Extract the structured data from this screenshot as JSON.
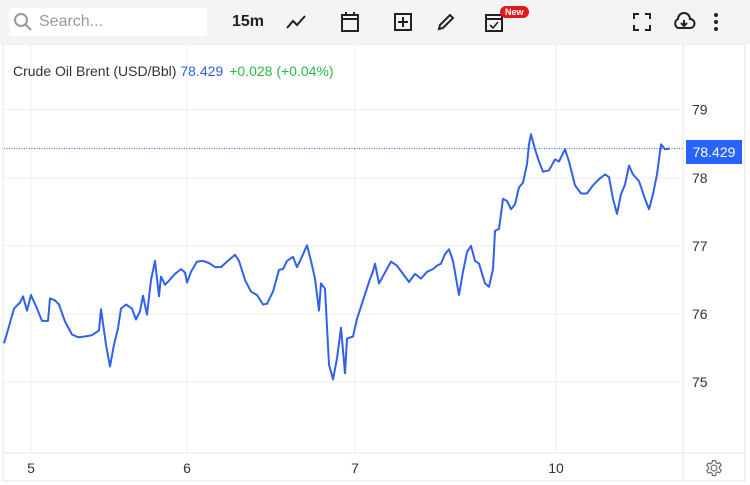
{
  "toolbar": {
    "search_placeholder": "Search...",
    "interval": "15m",
    "icons": [
      "search-icon",
      "line-chart-icon",
      "calendar-icon",
      "add-indicator-icon",
      "pencil-icon",
      "calendar-check-icon",
      "fullscreen-icon",
      "cloud-download-icon",
      "more-vertical-icon"
    ],
    "new_badge": "New"
  },
  "legend": {
    "name": "Crude Oil Brent (USD/Bbl)",
    "price": "78.429",
    "change": "+0.028 (+0.04%)"
  },
  "price_label": "78.429",
  "colors": {
    "line": "#2f62e8",
    "accent": "#2962ff",
    "positive": "#2bb94a"
  },
  "chart_data": {
    "type": "line",
    "title": "",
    "xlabel": "",
    "ylabel": "",
    "x_unit": "bar",
    "x_ticks": [
      {
        "label": "5",
        "x": 27
      },
      {
        "label": "6",
        "x": 183
      },
      {
        "label": "7",
        "x": 351
      },
      {
        "label": "10",
        "x": 552
      }
    ],
    "y_ticks": [
      75,
      76,
      77,
      78,
      79
    ],
    "ylim": [
      73.96,
      79.95
    ],
    "xlim": [
      0,
      666
    ],
    "grid": true,
    "last_value": 78.429,
    "x": [
      0,
      5,
      10,
      16,
      19,
      23,
      27,
      33,
      38,
      44,
      46,
      51,
      55,
      61,
      68,
      74,
      81,
      88,
      95,
      97,
      102,
      106,
      110,
      114,
      117,
      122,
      128,
      132,
      136,
      139,
      143,
      147,
      151,
      155,
      157,
      161,
      165,
      171,
      177,
      181,
      183,
      187,
      193,
      199,
      205,
      211,
      217,
      223,
      231,
      235,
      241,
      247,
      253,
      259,
      263,
      269,
      275,
      279,
      283,
      289,
      293,
      297,
      303,
      307,
      311,
      315,
      317,
      321,
      325,
      329,
      333,
      337,
      341,
      343,
      349,
      353,
      359,
      365,
      369,
      371,
      375,
      381,
      387,
      393,
      399,
      405,
      411,
      417,
      423,
      429,
      433,
      437,
      441,
      445,
      449,
      455,
      459,
      463,
      467,
      471,
      475,
      481,
      485,
      489,
      491,
      495,
      499,
      503,
      507,
      511,
      515,
      519,
      523,
      525,
      527,
      531,
      535,
      539,
      545,
      551,
      555,
      561,
      565,
      571,
      577,
      583,
      589,
      595,
      601,
      605,
      609,
      613,
      617,
      621,
      625,
      629,
      635,
      641,
      645,
      649,
      653,
      657,
      661,
      666
    ],
    "values": [
      75.57,
      75.82,
      76.08,
      76.17,
      76.26,
      76.05,
      76.28,
      76.08,
      75.9,
      75.9,
      76.23,
      76.2,
      76.14,
      75.89,
      75.7,
      75.66,
      75.67,
      75.69,
      75.76,
      76.07,
      75.55,
      75.23,
      75.55,
      75.79,
      76.08,
      76.14,
      76.08,
      75.92,
      76.04,
      76.27,
      75.99,
      76.5,
      76.78,
      76.26,
      76.55,
      76.43,
      76.49,
      76.59,
      76.66,
      76.61,
      76.46,
      76.62,
      76.77,
      76.78,
      76.75,
      76.69,
      76.69,
      76.77,
      76.87,
      76.78,
      76.5,
      76.33,
      76.28,
      76.14,
      76.15,
      76.33,
      76.65,
      76.66,
      76.78,
      76.84,
      76.69,
      76.81,
      77.01,
      76.78,
      76.52,
      76.05,
      76.45,
      76.37,
      75.26,
      75.04,
      75.35,
      75.8,
      75.13,
      75.64,
      75.67,
      75.93,
      76.2,
      76.47,
      76.63,
      76.74,
      76.45,
      76.61,
      76.77,
      76.71,
      76.59,
      76.47,
      76.59,
      76.52,
      76.62,
      76.66,
      76.71,
      76.74,
      76.88,
      76.95,
      76.78,
      76.28,
      76.62,
      76.91,
      77.0,
      76.78,
      76.74,
      76.45,
      76.4,
      76.66,
      77.22,
      77.25,
      77.69,
      77.66,
      77.54,
      77.61,
      77.86,
      77.93,
      78.2,
      78.49,
      78.64,
      78.42,
      78.24,
      78.09,
      78.11,
      78.27,
      78.24,
      78.42,
      78.24,
      77.89,
      77.77,
      77.77,
      77.89,
      77.98,
      78.05,
      78.01,
      77.69,
      77.47,
      77.76,
      77.9,
      78.18,
      78.05,
      77.95,
      77.69,
      77.54,
      77.76,
      78.05,
      78.49,
      78.42,
      78.43
    ]
  }
}
